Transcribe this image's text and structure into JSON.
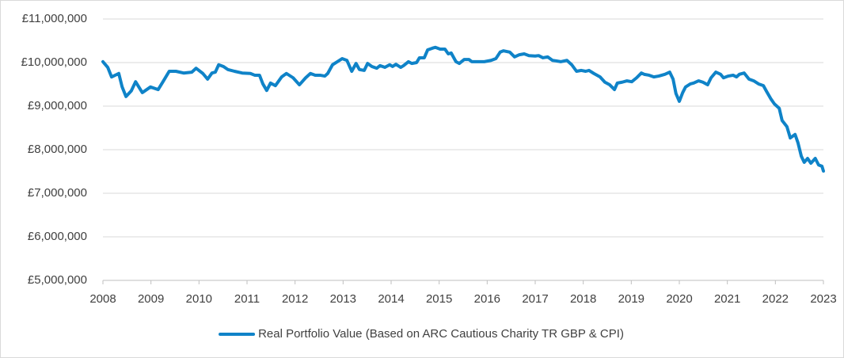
{
  "chart_data": {
    "type": "line",
    "x": [
      2008.0,
      2008.1,
      2008.18,
      2008.33,
      2008.4,
      2008.48,
      2008.59,
      2008.68,
      2008.82,
      2008.99,
      2009.15,
      2009.25,
      2009.38,
      2009.52,
      2009.68,
      2009.85,
      2009.94,
      2010.08,
      2010.18,
      2010.27,
      2010.34,
      2010.41,
      2010.51,
      2010.6,
      2010.74,
      2010.9,
      2011.07,
      2011.16,
      2011.26,
      2011.33,
      2011.41,
      2011.49,
      2011.59,
      2011.72,
      2011.82,
      2011.96,
      2012.09,
      2012.22,
      2012.32,
      2012.42,
      2012.52,
      2012.62,
      2012.68,
      2012.78,
      2012.88,
      2012.98,
      2013.08,
      2013.18,
      2013.27,
      2013.34,
      2013.44,
      2013.51,
      2013.6,
      2013.7,
      2013.77,
      2013.87,
      2013.97,
      2014.03,
      2014.1,
      2014.2,
      2014.26,
      2014.36,
      2014.43,
      2014.53,
      2014.59,
      2014.69,
      2014.76,
      2014.86,
      2014.92,
      2015.02,
      2015.12,
      2015.19,
      2015.25,
      2015.35,
      2015.42,
      2015.52,
      2015.62,
      2015.68,
      2015.81,
      2015.94,
      2016.08,
      2016.18,
      2016.27,
      2016.34,
      2016.47,
      2016.57,
      2016.67,
      2016.77,
      2016.87,
      2017.0,
      2017.07,
      2017.16,
      2017.26,
      2017.36,
      2017.43,
      2017.53,
      2017.66,
      2017.76,
      2017.86,
      2017.96,
      2018.05,
      2018.12,
      2018.22,
      2018.35,
      2018.45,
      2018.55,
      2018.65,
      2018.71,
      2018.81,
      2018.91,
      2019.01,
      2019.11,
      2019.21,
      2019.27,
      2019.37,
      2019.47,
      2019.57,
      2019.7,
      2019.8,
      2019.87,
      2019.93,
      2020.0,
      2020.07,
      2020.13,
      2020.23,
      2020.3,
      2020.4,
      2020.49,
      2020.59,
      2020.66,
      2020.76,
      2020.86,
      2020.92,
      2021.02,
      2021.12,
      2021.19,
      2021.25,
      2021.35,
      2021.45,
      2021.55,
      2021.65,
      2021.75,
      2021.81,
      2021.91,
      2021.98,
      2022.08,
      2022.14,
      2022.24,
      2022.31,
      2022.41,
      2022.47,
      2022.54,
      2022.6,
      2022.67,
      2022.74,
      2022.83,
      2022.9,
      2022.97,
      2023.0
    ],
    "series": [
      {
        "name": "Real Portfolio Value (Based on ARC Cautious Charity TR GBP & CPI)",
        "color": "#0f83c8",
        "values": [
          10020000,
          9890000,
          9670000,
          9750000,
          9440000,
          9220000,
          9350000,
          9560000,
          9310000,
          9440000,
          9380000,
          9560000,
          9800000,
          9800000,
          9760000,
          9780000,
          9870000,
          9750000,
          9620000,
          9760000,
          9780000,
          9950000,
          9910000,
          9840000,
          9800000,
          9760000,
          9750000,
          9710000,
          9710000,
          9510000,
          9360000,
          9530000,
          9470000,
          9670000,
          9750000,
          9650000,
          9490000,
          9650000,
          9750000,
          9710000,
          9710000,
          9690000,
          9750000,
          9950000,
          10020000,
          10090000,
          10050000,
          9800000,
          9980000,
          9840000,
          9820000,
          9980000,
          9910000,
          9870000,
          9930000,
          9890000,
          9950000,
          9910000,
          9960000,
          9890000,
          9930000,
          10020000,
          9980000,
          10000000,
          10110000,
          10110000,
          10290000,
          10330000,
          10350000,
          10310000,
          10310000,
          10200000,
          10220000,
          10020000,
          9980000,
          10070000,
          10070000,
          10020000,
          10020000,
          10020000,
          10050000,
          10090000,
          10240000,
          10270000,
          10240000,
          10130000,
          10180000,
          10200000,
          10160000,
          10150000,
          10160000,
          10110000,
          10130000,
          10050000,
          10040000,
          10020000,
          10050000,
          9950000,
          9800000,
          9820000,
          9800000,
          9820000,
          9750000,
          9670000,
          9550000,
          9490000,
          9380000,
          9530000,
          9550000,
          9580000,
          9560000,
          9650000,
          9760000,
          9730000,
          9710000,
          9670000,
          9690000,
          9730000,
          9780000,
          9620000,
          9290000,
          9110000,
          9310000,
          9440000,
          9510000,
          9530000,
          9580000,
          9550000,
          9490000,
          9650000,
          9780000,
          9730000,
          9650000,
          9690000,
          9710000,
          9670000,
          9730000,
          9760000,
          9620000,
          9580000,
          9510000,
          9470000,
          9350000,
          9160000,
          9050000,
          8950000,
          8670000,
          8530000,
          8270000,
          8350000,
          8160000,
          7850000,
          7710000,
          7800000,
          7690000,
          7800000,
          7650000,
          7620000,
          7510000
        ]
      }
    ],
    "xlim": [
      2008,
      2023
    ],
    "xticks": [
      2008,
      2009,
      2010,
      2011,
      2012,
      2013,
      2014,
      2015,
      2016,
      2017,
      2018,
      2019,
      2020,
      2021,
      2022,
      2023
    ],
    "ylim": [
      5000000,
      11000000
    ],
    "yticks": [
      {
        "value": 5000000,
        "label": "£5,000,000"
      },
      {
        "value": 6000000,
        "label": "£6,000,000"
      },
      {
        "value": 7000000,
        "label": "£7,000,000"
      },
      {
        "value": 8000000,
        "label": "£8,000,000"
      },
      {
        "value": 9000000,
        "label": "£9,000,000"
      },
      {
        "value": 10000000,
        "label": "£10,000,000"
      },
      {
        "value": 11000000,
        "label": "£11,000,000"
      }
    ],
    "grid": true,
    "legend": "bottom"
  }
}
